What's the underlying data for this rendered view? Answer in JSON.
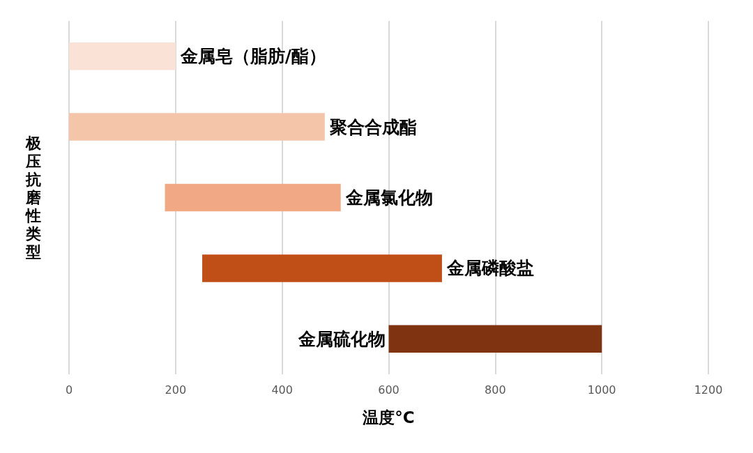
{
  "chart_data": {
    "type": "bar",
    "orientation": "horizontal",
    "xlabel": "温度°C",
    "ylabel": "极压抗磨性类型",
    "categories": [
      "金属皂（脂肪/酯）",
      "聚合合成酯",
      "金属氯化物",
      "金属磷酸盐",
      "金属硫化物"
    ],
    "base": [
      0,
      0,
      180,
      250,
      600
    ],
    "values": [
      200,
      480,
      330,
      450,
      400
    ],
    "colors": [
      "#fbe2d7",
      "#f5c5aa",
      "#f1a985",
      "#c04f17",
      "#7f3311"
    ],
    "xlim": [
      0,
      1200
    ],
    "xticks": [
      0,
      200,
      400,
      600,
      800,
      1000,
      1200
    ],
    "grid": "x",
    "tick_labels": "x"
  }
}
